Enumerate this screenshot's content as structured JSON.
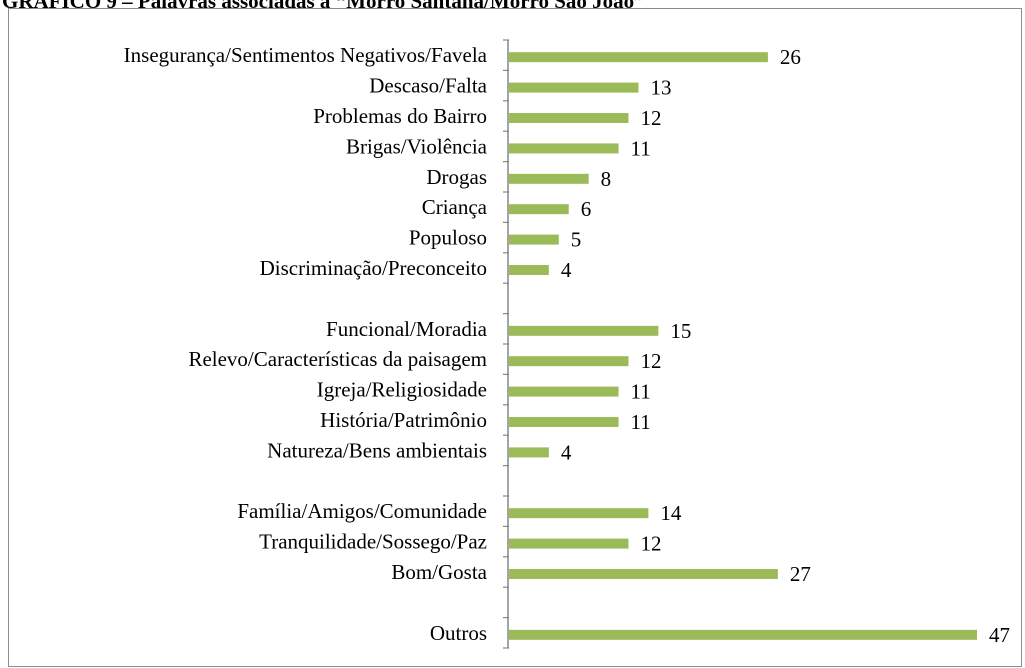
{
  "figure": {
    "caption": "GRÁFICO 9 – Palavras associadas a “Morro Santana/Morro São João”"
  },
  "colors": {
    "bar": "#9bbb59",
    "axis": "#868686",
    "frame": "#8c8c8c"
  },
  "chart_data": {
    "type": "bar",
    "orientation": "horizontal",
    "categories": [
      "Insegurança/Sentimentos Negativos/Favela",
      "Descaso/Falta",
      "Problemas do Bairro",
      "Brigas/Violência",
      "Drogas",
      "Criança",
      "Populoso",
      "Discriminação/Preconceito",
      "",
      "Funcional/Moradia",
      "Relevo/Características da paisagem",
      "Igreja/Religiosidade",
      "História/Patrimônio",
      "Natureza/Bens ambientais",
      "",
      "Família/Amigos/Comunidade",
      "Tranquilidade/Sossego/Paz",
      "Bom/Gosta",
      "",
      "Outros"
    ],
    "values": [
      26,
      13,
      12,
      11,
      8,
      6,
      5,
      4,
      null,
      15,
      12,
      11,
      11,
      4,
      null,
      14,
      12,
      27,
      null,
      47
    ],
    "data_labels": true,
    "xlim": [
      0,
      47
    ],
    "grid": false,
    "legend": "none"
  }
}
